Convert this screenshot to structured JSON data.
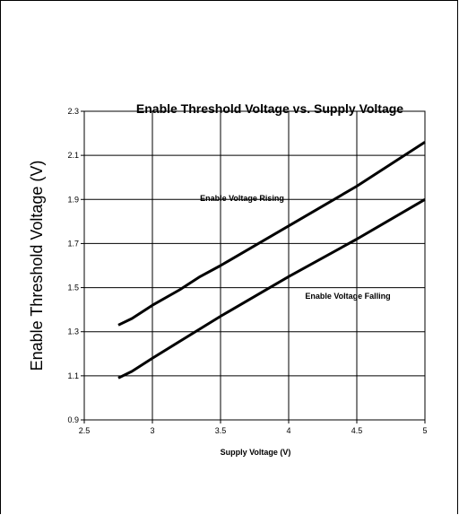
{
  "chart_data": {
    "type": "line",
    "title": "Enable Threshold Voltage vs. Supply Voltage",
    "xlabel": "Supply Voltage (V)",
    "ylabel": "Enable Threshold Voltage (V)",
    "xlim": [
      2.5,
      5
    ],
    "ylim": [
      0.9,
      2.3
    ],
    "xticks": [
      "2.5",
      "3",
      "3.5",
      "4",
      "4.5",
      "5"
    ],
    "yticks": [
      "0.9",
      "1.1",
      "1.3",
      "1.5",
      "1.7",
      "1.9",
      "2.1",
      "2.3"
    ],
    "grid": true,
    "series": [
      {
        "name": "Enable Voltage Rising",
        "x": [
          2.75,
          2.85,
          3.0,
          3.2,
          3.35,
          3.5,
          4.0,
          4.5,
          5.0
        ],
        "y": [
          1.33,
          1.36,
          1.42,
          1.49,
          1.55,
          1.6,
          1.78,
          1.96,
          2.16
        ]
      },
      {
        "name": "Enable Voltage Falling",
        "x": [
          2.75,
          2.85,
          3.0,
          3.5,
          4.0,
          4.5,
          5.0
        ],
        "y": [
          1.09,
          1.12,
          1.18,
          1.37,
          1.55,
          1.72,
          1.9
        ]
      }
    ],
    "annotations": [
      {
        "text": "Enable Voltage Rising",
        "series": 0
      },
      {
        "text": "Enable Voltage Falling",
        "series": 1
      }
    ]
  }
}
